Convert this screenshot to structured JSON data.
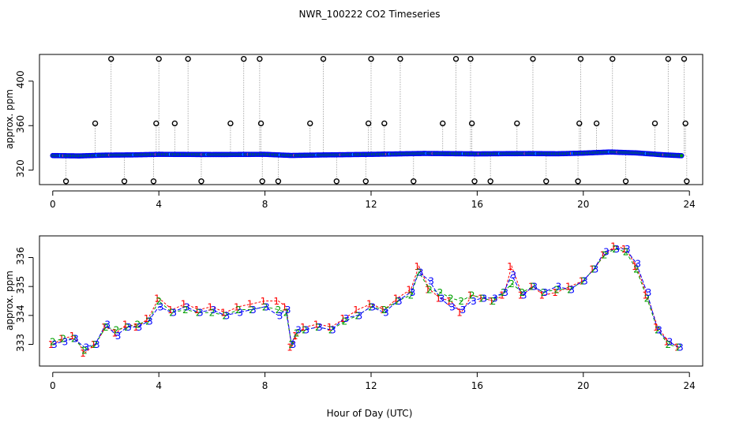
{
  "title": "NWR_100222  CO2 Timeseries",
  "xlabel": "Hour of Day (UTC)",
  "colors": {
    "open_marker": "#000000",
    "series_blue": "#0000ff",
    "series_green": "#00a000",
    "series_red": "#ff0000",
    "highlight_cyan": "#00ffff",
    "highlight_orange": "#ffa500",
    "spike_line": "#999999"
  },
  "chart_data": [
    {
      "type": "scatter",
      "title": "",
      "xlabel": "",
      "ylabel": "approx. ppm",
      "xlim": [
        -0.5,
        24.5
      ],
      "ylim": [
        307,
        424
      ],
      "x_ticks": [
        0,
        4,
        8,
        12,
        16,
        20,
        24
      ],
      "y_ticks": [
        320,
        360,
        400
      ],
      "baseline_x": [
        0,
        1,
        2,
        3,
        4,
        5,
        6,
        7,
        8,
        9,
        10,
        11,
        12,
        13,
        14,
        15,
        16,
        17,
        18,
        19,
        20,
        21,
        22,
        23,
        23.7
      ],
      "baseline_y": [
        333.1,
        332.8,
        333.5,
        333.7,
        334.2,
        334.1,
        334.0,
        334.1,
        334.2,
        333.2,
        333.6,
        333.9,
        334.2,
        334.6,
        335.0,
        334.8,
        334.6,
        334.8,
        334.9,
        334.7,
        335.3,
        336.3,
        335.5,
        333.8,
        333.0
      ],
      "spikes_x": [
        0.5,
        1.6,
        2.2,
        2.7,
        3.8,
        3.9,
        4.0,
        4.6,
        5.1,
        5.6,
        6.7,
        7.2,
        7.8,
        7.85,
        7.9,
        8.5,
        9.7,
        10.2,
        10.7,
        11.8,
        11.9,
        12.0,
        12.5,
        13.1,
        13.6,
        14.7,
        15.2,
        15.75,
        15.8,
        15.9,
        16.5,
        17.5,
        18.1,
        18.6,
        19.8,
        19.85,
        19.9,
        20.5,
        21.1,
        21.6,
        22.7,
        23.2,
        23.8,
        23.85,
        23.9
      ],
      "spikes_y": [
        310,
        362,
        420,
        310,
        310,
        362,
        420,
        362,
        420,
        310,
        362,
        420,
        420,
        362,
        310,
        310,
        362,
        420,
        310,
        310,
        362,
        420,
        362,
        420,
        310,
        362,
        420,
        420,
        362,
        310,
        310,
        362,
        420,
        310,
        310,
        362,
        420,
        362,
        420,
        310,
        362,
        420,
        420,
        362,
        310
      ]
    },
    {
      "type": "line",
      "title": "",
      "xlabel": "Hour of Day (UTC)",
      "ylabel": "approx. ppm",
      "xlim": [
        -0.5,
        24.5
      ],
      "ylim": [
        332.25,
        336.75
      ],
      "x_ticks": [
        0,
        4,
        8,
        12,
        16,
        20,
        24
      ],
      "y_ticks": [
        333,
        334,
        335,
        336
      ],
      "x": [
        0,
        0.4,
        0.8,
        1.2,
        1.6,
        2.0,
        2.4,
        2.8,
        3.2,
        3.6,
        4.0,
        4.5,
        5.0,
        5.5,
        6.0,
        6.5,
        7.0,
        7.5,
        8.0,
        8.5,
        8.8,
        9.0,
        9.2,
        9.5,
        10.0,
        10.5,
        11.0,
        11.5,
        12.0,
        12.5,
        13.0,
        13.5,
        13.8,
        14.2,
        14.6,
        15.0,
        15.4,
        15.8,
        16.2,
        16.6,
        17.0,
        17.3,
        17.7,
        18.1,
        18.5,
        19.0,
        19.5,
        20.0,
        20.4,
        20.8,
        21.2,
        21.6,
        22.0,
        22.4,
        22.8,
        23.2,
        23.6
      ],
      "series": [
        {
          "name": "1",
          "values": [
            333.0,
            333.2,
            333.3,
            332.7,
            333.0,
            333.6,
            333.4,
            333.7,
            333.6,
            333.9,
            334.6,
            334.2,
            334.4,
            334.2,
            334.3,
            334.1,
            334.3,
            334.4,
            334.5,
            334.5,
            334.3,
            332.9,
            333.3,
            333.6,
            333.7,
            333.6,
            333.9,
            334.2,
            334.4,
            334.2,
            334.6,
            334.9,
            335.7,
            334.9,
            334.6,
            334.5,
            334.1,
            334.7,
            334.6,
            334.5,
            334.7,
            335.7,
            334.7,
            335.0,
            334.7,
            334.8,
            335.0,
            335.2,
            335.6,
            336.1,
            336.4,
            336.3,
            335.7,
            334.7,
            333.6,
            333.1,
            332.9
          ]
        },
        {
          "name": "2",
          "values": [
            333.1,
            333.2,
            333.2,
            332.8,
            333.0,
            333.6,
            333.5,
            333.6,
            333.7,
            333.8,
            334.5,
            334.1,
            334.2,
            334.1,
            334.1,
            334.0,
            334.2,
            334.2,
            334.3,
            334.2,
            334.1,
            333.0,
            333.4,
            333.5,
            333.6,
            333.5,
            333.8,
            334.0,
            334.3,
            334.2,
            334.5,
            334.7,
            335.5,
            334.9,
            334.8,
            334.6,
            334.5,
            334.7,
            334.6,
            334.5,
            334.8,
            335.1,
            334.8,
            335.0,
            334.8,
            334.9,
            334.9,
            335.2,
            335.6,
            336.1,
            336.3,
            336.2,
            335.6,
            334.6,
            333.5,
            333.0,
            332.9
          ]
        },
        {
          "name": "3",
          "values": [
            333.0,
            333.1,
            333.2,
            332.9,
            333.0,
            333.7,
            333.3,
            333.6,
            333.6,
            333.8,
            334.3,
            334.1,
            334.3,
            334.1,
            334.2,
            334.0,
            334.1,
            334.2,
            334.3,
            334.0,
            334.2,
            333.0,
            333.5,
            333.5,
            333.6,
            333.5,
            333.9,
            334.0,
            334.3,
            334.1,
            334.5,
            334.8,
            335.5,
            335.2,
            334.6,
            334.3,
            334.2,
            334.5,
            334.6,
            334.6,
            334.8,
            335.4,
            334.7,
            335.0,
            334.8,
            335.0,
            334.9,
            335.2,
            335.6,
            336.2,
            336.3,
            336.3,
            335.8,
            334.8,
            333.5,
            333.1,
            332.9
          ]
        }
      ]
    }
  ]
}
